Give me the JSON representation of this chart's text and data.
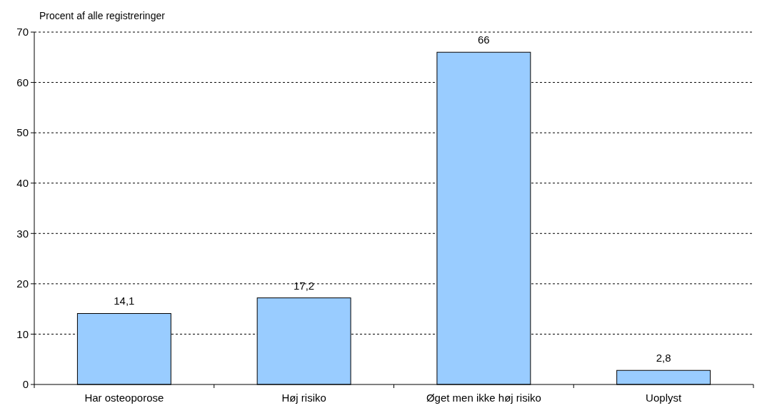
{
  "chart_data": {
    "type": "bar",
    "ylabel": "Procent af alle registreringer",
    "categories": [
      "Har osteoporose",
      "Høj risiko",
      "Øget men ikke høj risiko",
      "Uoplyst"
    ],
    "values": [
      14.1,
      17.2,
      66,
      2.8
    ],
    "value_labels": [
      "14,1",
      "17,2",
      "66",
      "2,8"
    ],
    "color": "#99ccff",
    "ylim": [
      0,
      70
    ],
    "yticks": [
      0,
      10,
      20,
      30,
      40,
      50,
      60,
      70
    ],
    "grid": "y"
  }
}
